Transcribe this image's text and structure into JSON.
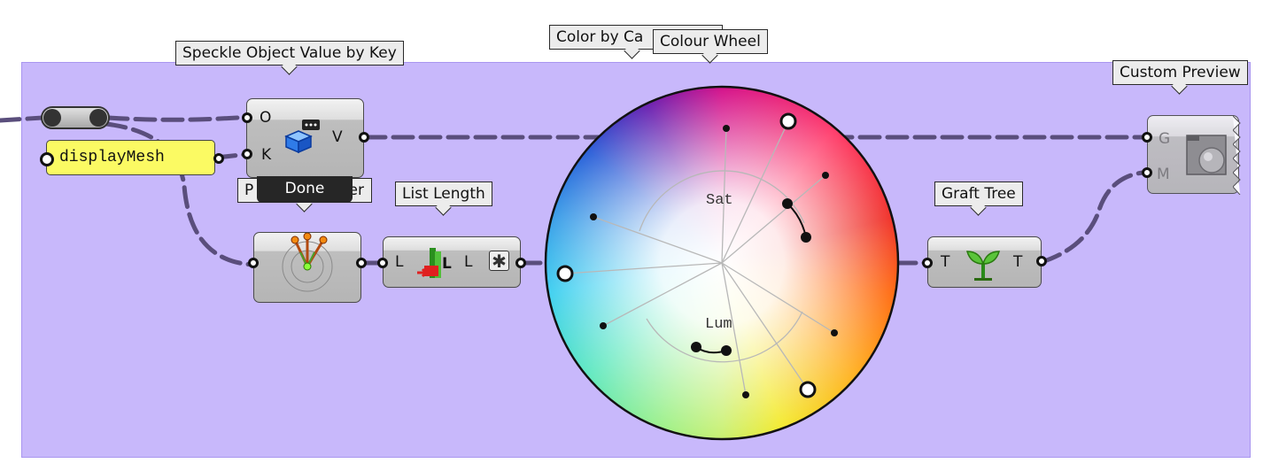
{
  "tooltips": {
    "speckle": "Speckle Object Value by Key",
    "color_by_category": "Color by Ca",
    "colour_wheel": "Colour Wheel",
    "custom_preview": "Custom Preview",
    "list_length": "List Length",
    "graft_tree": "Graft Tree",
    "param_viewer_left": "P",
    "param_viewer_right": "er"
  },
  "speckle_component": {
    "input_o": "O",
    "input_k": "K",
    "output_v": "V",
    "status": "Done"
  },
  "panel": {
    "text": "displayMesh"
  },
  "list_length": {
    "input": "L",
    "output": "L",
    "icon_letter": "L"
  },
  "colour_wheel": {
    "sat_label": "Sat",
    "lum_label": "Lum"
  },
  "graft_tree": {
    "input": "T",
    "output": "T"
  },
  "custom_preview": {
    "input_g": "G",
    "input_m": "M"
  },
  "colors": {
    "group_fill": "#c8b8fb",
    "panel_fill": "#fbfa63",
    "wire": "#5a4e7c"
  }
}
